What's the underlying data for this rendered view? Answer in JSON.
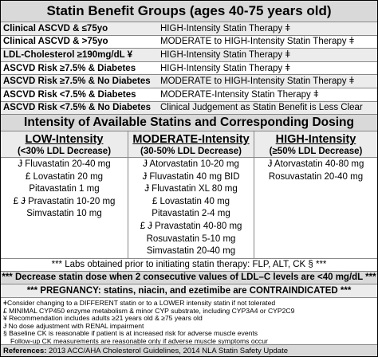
{
  "benefit_groups": {
    "title": "Statin Benefit Groups (ages 40-75 years old)",
    "rows": [
      [
        "Clinical ASCVD & ≤75yo",
        "HIGH-Intensity Statin Therapy ǂ"
      ],
      [
        "Clinical ASCVD & >75yo",
        "MODERATE to HIGH-Intensity Statin Therapy ǂ"
      ],
      [
        "LDL-Cholesterol ≥190mg/dL ¥",
        "HIGH-Intensity Statin Therapy ǂ"
      ],
      [
        "ASCVD Risk ≥7.5% & Diabetes",
        "HIGH-Intensity Statin Therapy ǂ"
      ],
      [
        "ASCVD Risk ≥7.5% & No Diabetes",
        "MODERATE to HIGH-Intensity Statin Therapy ǂ"
      ],
      [
        "ASCVD Risk <7.5% & Diabetes",
        "MODERATE-Intensity Statin Therapy ǂ"
      ],
      [
        "ASCVD Risk <7.5% & No Diabetes",
        "Clinical Judgement as Statin Benefit is Less Clear"
      ]
    ]
  },
  "dosing": {
    "title": "Intensity of Available Statins and Corresponding Dosing",
    "columns": [
      {
        "heading": "LOW-Intensity",
        "subheading": "(<30% LDL Decrease)",
        "drugs": [
          "Ɉ Fluvastatin 20-40 mg",
          "£ Lovastatin 20 mg",
          "Pitavastatin 1 mg",
          "£ Ɉ Pravastatin 10-20 mg",
          "Simvastatin 10 mg"
        ]
      },
      {
        "heading": "MODERATE-Intensity",
        "subheading": "(30-50% LDL Decrease)",
        "drugs": [
          "Ɉ Atorvastatin 10-20 mg",
          "Ɉ Fluvastatin 40 mg BID",
          "Ɉ Fluvastatin XL 80 mg",
          "£ Lovastatin 40 mg",
          "Pitavastatin 2-4 mg",
          "£ Ɉ Pravastatin 40-80 mg",
          "Rosuvastatin 5-10 mg",
          "Simvastatin 20-40 mg"
        ]
      },
      {
        "heading": "HIGH-Intensity",
        "subheading": "(≥50% LDL Decrease)",
        "drugs": [
          "Ɉ Atorvastatin 40-80 mg",
          "Rosuvastatin 20-40 mg"
        ]
      }
    ]
  },
  "notes": [
    "*** Labs obtained prior to initiating statin therapy: FLP, ALT, CK § ***",
    "*** Decrease statin dose when 2 consecutive values of LDL–C levels are <40 mg/dL ***",
    "*** PREGNANCY: statins, niacin, and ezetimibe are CONTRAINDICATED ***"
  ],
  "footnotes": [
    "ǂConsider changing to a DIFFERENT statin or to a LOWER intensity statin if not tolerated",
    "£ MINIMAL CYP450 enzyme metabolism & minor CYP substrate, including CYP3A4 or CYP2C9",
    "¥ Recommendation includes adults ≥21 years old & ≥75 years old",
    "Ɉ No dose adjustment with RENAL impairment",
    "§ Baseline CK is reasonable if patient is at increased risk for adverse muscle events",
    "Follow-up CK measurements are reasonable only if adverse muscle symptoms occur"
  ],
  "references": {
    "label": "References:",
    "text": "2013 ACC/AHA Cholesterol Guidelines, 2014 NLA Statin Safety Update"
  }
}
